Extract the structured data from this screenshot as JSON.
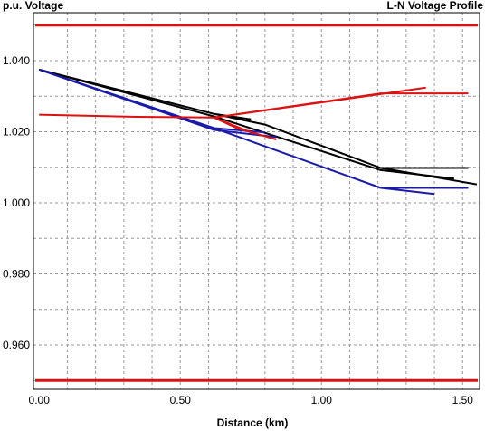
{
  "chart_data": {
    "type": "line",
    "title": "L-N Voltage Profile",
    "ylabel": "p.u. Voltage",
    "xlabel": "Distance (km)",
    "xlim": [
      -0.02,
      1.56
    ],
    "ylim": [
      0.9475,
      1.0535
    ],
    "xticks": [
      "0.00",
      "0.50",
      "1.00",
      "1.50"
    ],
    "xtick_values": [
      0,
      0.5,
      1.0,
      1.5
    ],
    "yticks": [
      "1.040",
      "1.020",
      "1.000",
      "0.980",
      "0.960"
    ],
    "ytick_values": [
      1.04,
      1.02,
      1.0,
      0.98,
      0.96
    ],
    "grid": true,
    "grid_x": [
      0.1,
      0.2,
      0.3,
      0.4,
      0.5,
      0.6,
      0.7,
      0.8,
      0.9,
      1.0,
      1.1,
      1.2,
      1.3,
      1.4,
      1.5
    ],
    "grid_y": [
      1.05,
      1.04,
      1.03,
      1.02,
      1.01,
      1.0,
      0.99,
      0.98,
      0.97,
      0.96,
      0.95
    ],
    "limits": [
      {
        "value": 1.05,
        "color": "#dd1111"
      },
      {
        "value": 0.95,
        "color": "#dd1111"
      }
    ],
    "series": [
      {
        "color": "#000000",
        "segments": [
          [
            [
              0.0,
              1.0375
            ],
            [
              0.62,
              1.025
            ],
            [
              0.8,
              1.022
            ],
            [
              1.21,
              1.0098
            ],
            [
              1.55,
              1.0052
            ]
          ],
          [
            [
              1.21,
              1.0098
            ],
            [
              1.52,
              1.0098
            ]
          ],
          [
            [
              0.0,
              1.0375
            ],
            [
              0.62,
              1.0243
            ],
            [
              1.21,
              1.0092
            ],
            [
              1.47,
              1.0068
            ]
          ],
          [
            [
              0.62,
              1.025
            ],
            [
              0.75,
              1.0235
            ]
          ]
        ]
      },
      {
        "color": "#1a1aaa",
        "segments": [
          [
            [
              0.0,
              1.0375
            ],
            [
              0.62,
              1.021
            ],
            [
              1.21,
              1.0042
            ],
            [
              1.52,
              1.0042
            ]
          ],
          [
            [
              1.21,
              1.0042
            ],
            [
              1.4,
              1.0025
            ]
          ],
          [
            [
              0.0,
              1.0375
            ],
            [
              0.62,
              1.0205
            ],
            [
              0.84,
              1.0185
            ]
          ],
          [
            [
              0.62,
              1.021
            ],
            [
              0.8,
              1.0198
            ]
          ]
        ]
      },
      {
        "color": "#dd1111",
        "segments": [
          [
            [
              0.0,
              1.0248
            ],
            [
              0.35,
              1.0242
            ],
            [
              0.62,
              1.024
            ],
            [
              1.21,
              1.0308
            ],
            [
              1.52,
              1.0308
            ]
          ],
          [
            [
              0.62,
              1.024
            ],
            [
              1.37,
              1.0324
            ]
          ],
          [
            [
              0.62,
              1.024
            ],
            [
              0.7,
              1.021
            ],
            [
              0.84,
              1.0178
            ]
          ],
          [
            [
              0.62,
              1.024
            ],
            [
              0.76,
              1.0195
            ]
          ]
        ]
      }
    ]
  }
}
